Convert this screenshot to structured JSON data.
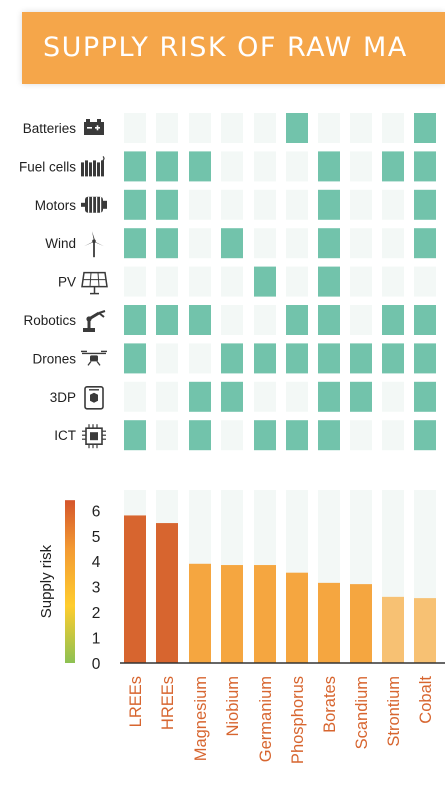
{
  "title": "SUPPLY RISK OF RAW MA",
  "colors": {
    "matrix_on": "#72c3ab",
    "matrix_off": "#f3f8f6",
    "bar_high": "#d7652f",
    "bar_mid": "#f5a640",
    "bar_low": "#f7c173",
    "bar_bg": "#f3f8f6",
    "label_red": "#d7652f",
    "header": "#f5a64a"
  },
  "matrix": {
    "rows": [
      {
        "label": "Batteries",
        "icon": "battery-icon"
      },
      {
        "label": "Fuel cells",
        "icon": "fuel-cell-icon"
      },
      {
        "label": "Motors",
        "icon": "motor-icon"
      },
      {
        "label": "Wind",
        "icon": "wind-turbine-icon"
      },
      {
        "label": "PV",
        "icon": "solar-panel-icon"
      },
      {
        "label": "Robotics",
        "icon": "robot-arm-icon"
      },
      {
        "label": "Drones",
        "icon": "drone-icon"
      },
      {
        "label": "3DP",
        "icon": "3d-printer-icon"
      },
      {
        "label": "ICT",
        "icon": "chip-icon"
      }
    ],
    "cells": [
      [
        0,
        0,
        0,
        0,
        0,
        1,
        0,
        0,
        0,
        1
      ],
      [
        1,
        1,
        1,
        0,
        0,
        0,
        1,
        0,
        1,
        1
      ],
      [
        1,
        1,
        0,
        0,
        0,
        0,
        1,
        0,
        0,
        1
      ],
      [
        1,
        1,
        0,
        1,
        0,
        0,
        1,
        0,
        0,
        1
      ],
      [
        0,
        0,
        0,
        0,
        1,
        0,
        1,
        0,
        0,
        0
      ],
      [
        1,
        1,
        1,
        0,
        0,
        1,
        1,
        0,
        1,
        1
      ],
      [
        1,
        0,
        0,
        1,
        1,
        1,
        1,
        1,
        1,
        1
      ],
      [
        0,
        0,
        1,
        1,
        0,
        0,
        1,
        1,
        0,
        1
      ],
      [
        1,
        0,
        1,
        0,
        1,
        1,
        1,
        0,
        0,
        1
      ]
    ]
  },
  "chart_data": {
    "type": "bar",
    "categories": [
      "LREEs",
      "HREEs",
      "Magnesium",
      "Niobium",
      "Germanium",
      "Phosphorus",
      "Borates",
      "Scandium",
      "Strontium",
      "Cobalt"
    ],
    "values": [
      5.8,
      5.5,
      3.9,
      3.85,
      3.85,
      3.55,
      3.15,
      3.1,
      2.6,
      2.55
    ],
    "ylabel": "Supply risk",
    "ylim": [
      0,
      6.8
    ],
    "yticks": [
      0,
      1,
      2,
      3,
      4,
      5,
      6
    ],
    "colorbar": [
      "#8dc153",
      "#ffcd2e",
      "#f39a33",
      "#d4552b"
    ]
  }
}
